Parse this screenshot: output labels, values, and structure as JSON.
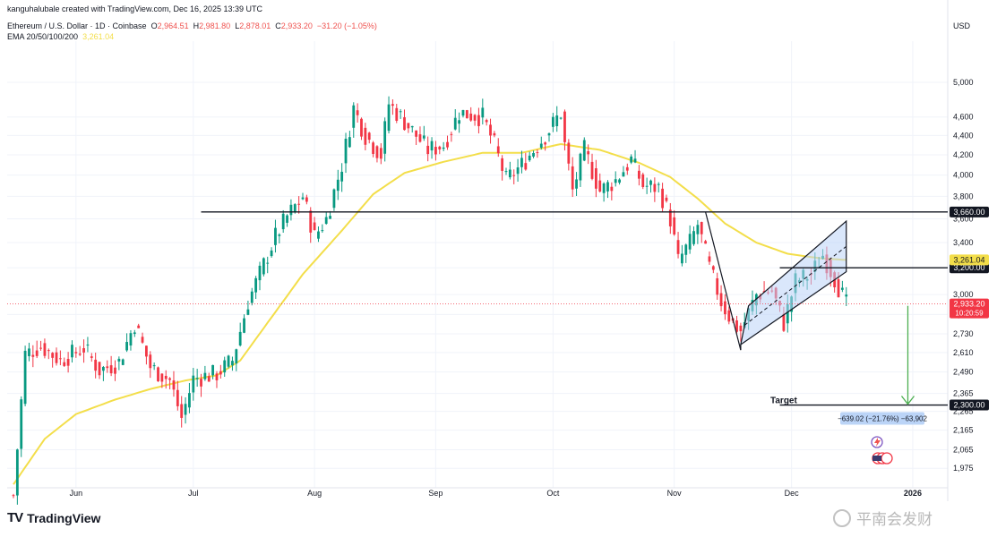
{
  "header": {
    "credit": "kanguhalubale created with TradingView.com, Dec 16, 2025 13:39 UTC",
    "symbol": "Ethereum / U.S. Dollar · 1D · Coinbase",
    "open_label": "O",
    "open": "2,964.51",
    "high_label": "H",
    "high": "2,981.80",
    "low_label": "L",
    "low": "2,878.01",
    "close_label": "C",
    "close": "2,933.20",
    "change": "−31.20 (−1.05%)",
    "ema_label": "EMA 20/50/100/200",
    "ema_value": "3,261.04"
  },
  "currency": "USD",
  "brand": "TradingView",
  "watermark": "平南会发财",
  "colors": {
    "up": "#089981",
    "down": "#f23645",
    "ema": "#f3de4a",
    "channel_fill": "#bbd4f7",
    "target_arrow": "#4caf50"
  },
  "icons": {
    "brand": "tradingview-logo-icon",
    "watermark": "wechat-channel-icon",
    "flag": "us-flag-icon",
    "event": "lightning-icon"
  },
  "chart_data": {
    "type": "candlestick",
    "y_scale": "log",
    "ylim": [
      1905,
      5450
    ],
    "y_ticks": [
      1975,
      2065,
      2165,
      2265,
      2365,
      2490,
      2610,
      2730,
      2860,
      3000,
      3200,
      3400,
      3600,
      3800,
      4000,
      4200,
      4400,
      4600,
      5000
    ],
    "y_tick_labels": [
      "1,975",
      "2,065",
      "2,165",
      "2,265",
      "2,365",
      "2,490",
      "2,610",
      "2,730",
      "2,860",
      "3,000",
      "3,200",
      "3,400",
      "3,600",
      "3,800",
      "4,000",
      "4,200",
      "4,400",
      "4,600",
      "5,000"
    ],
    "x_labels": [
      "Jun",
      "Jul",
      "Aug",
      "Sep",
      "Oct",
      "Nov",
      "Dec",
      "2026"
    ],
    "x_label_days": [
      16,
      46,
      77,
      108,
      138,
      169,
      199,
      230
    ],
    "date_range": [
      "2025-05-17",
      "2026-01-04"
    ],
    "anchors": [
      {
        "day": 0,
        "price": 1850
      },
      {
        "day": 3,
        "price": 2600
      },
      {
        "day": 7,
        "price": 2650
      },
      {
        "day": 12,
        "price": 2560
      },
      {
        "day": 18,
        "price": 2640
      },
      {
        "day": 22,
        "price": 2500
      },
      {
        "day": 27,
        "price": 2550
      },
      {
        "day": 31,
        "price": 2800
      },
      {
        "day": 35,
        "price": 2520
      },
      {
        "day": 40,
        "price": 2440
      },
      {
        "day": 43,
        "price": 2230
      },
      {
        "day": 46,
        "price": 2450
      },
      {
        "day": 52,
        "price": 2480
      },
      {
        "day": 56,
        "price": 2560
      },
      {
        "day": 60,
        "price": 2950
      },
      {
        "day": 67,
        "price": 3450
      },
      {
        "day": 70,
        "price": 3620
      },
      {
        "day": 74,
        "price": 3800
      },
      {
        "day": 77,
        "price": 3450
      },
      {
        "day": 80,
        "price": 3600
      },
      {
        "day": 84,
        "price": 4100
      },
      {
        "day": 87,
        "price": 4700
      },
      {
        "day": 90,
        "price": 4400
      },
      {
        "day": 94,
        "price": 4200
      },
      {
        "day": 96,
        "price": 4750
      },
      {
        "day": 99,
        "price": 4600
      },
      {
        "day": 102,
        "price": 4450
      },
      {
        "day": 106,
        "price": 4250
      },
      {
        "day": 110,
        "price": 4300
      },
      {
        "day": 114,
        "price": 4650
      },
      {
        "day": 120,
        "price": 4600
      },
      {
        "day": 123,
        "price": 4300
      },
      {
        "day": 126,
        "price": 3950
      },
      {
        "day": 130,
        "price": 4100
      },
      {
        "day": 136,
        "price": 4400
      },
      {
        "day": 140,
        "price": 4650
      },
      {
        "day": 141,
        "price": 4300
      },
      {
        "day": 143,
        "price": 3850
      },
      {
        "day": 146,
        "price": 4250
      },
      {
        "day": 150,
        "price": 3850
      },
      {
        "day": 154,
        "price": 3950
      },
      {
        "day": 158,
        "price": 4150
      },
      {
        "day": 161,
        "price": 3900
      },
      {
        "day": 165,
        "price": 3880
      },
      {
        "day": 168,
        "price": 3600
      },
      {
        "day": 170,
        "price": 3250
      },
      {
        "day": 173,
        "price": 3400
      },
      {
        "day": 175,
        "price": 3550
      },
      {
        "day": 178,
        "price": 3200
      },
      {
        "day": 181,
        "price": 2950
      },
      {
        "day": 184,
        "price": 2800
      },
      {
        "day": 186,
        "price": 2750
      },
      {
        "day": 190,
        "price": 3000
      },
      {
        "day": 194,
        "price": 3030
      },
      {
        "day": 197,
        "price": 2800
      },
      {
        "day": 200,
        "price": 3100
      },
      {
        "day": 204,
        "price": 3150
      },
      {
        "day": 207,
        "price": 3300
      },
      {
        "day": 210,
        "price": 3120
      },
      {
        "day": 213,
        "price": 2930
      }
    ],
    "ema_anchors": [
      {
        "day": 0,
        "price": 1900
      },
      {
        "day": 8,
        "price": 2120
      },
      {
        "day": 16,
        "price": 2250
      },
      {
        "day": 26,
        "price": 2330
      },
      {
        "day": 35,
        "price": 2390
      },
      {
        "day": 44,
        "price": 2440
      },
      {
        "day": 52,
        "price": 2470
      },
      {
        "day": 58,
        "price": 2560
      },
      {
        "day": 66,
        "price": 2840
      },
      {
        "day": 74,
        "price": 3150
      },
      {
        "day": 84,
        "price": 3500
      },
      {
        "day": 92,
        "price": 3820
      },
      {
        "day": 100,
        "price": 4020
      },
      {
        "day": 110,
        "price": 4130
      },
      {
        "day": 120,
        "price": 4220
      },
      {
        "day": 130,
        "price": 4220
      },
      {
        "day": 140,
        "price": 4310
      },
      {
        "day": 150,
        "price": 4250
      },
      {
        "day": 160,
        "price": 4120
      },
      {
        "day": 168,
        "price": 3980
      },
      {
        "day": 175,
        "price": 3780
      },
      {
        "day": 182,
        "price": 3560
      },
      {
        "day": 190,
        "price": 3400
      },
      {
        "day": 198,
        "price": 3310
      },
      {
        "day": 206,
        "price": 3275
      },
      {
        "day": 213,
        "price": 3261
      }
    ],
    "horizontal_levels": [
      {
        "price": 3660,
        "label": "3,660.00",
        "from_day": 48,
        "to_day": 243
      },
      {
        "price": 3200,
        "label": "3,200.00",
        "from_day": 196,
        "to_day": 243
      },
      {
        "price": 2300,
        "label": "2,300.00",
        "from_day": 196,
        "to_day": 243
      }
    ],
    "ema_tag": "3,261.04",
    "price_tag": "2,933.20",
    "countdown": "10:20:59",
    "target_label": "Target",
    "target_measure": "−639.02 (−21.76%) −63,902",
    "channel": {
      "lower": [
        {
          "day": 186,
          "price": 2660
        },
        {
          "day": 213,
          "price": 3170
        }
      ],
      "upper": [
        {
          "day": 188,
          "price": 2920
        },
        {
          "day": 213,
          "price": 3580
        }
      ]
    },
    "drop_line": [
      {
        "day": 177,
        "price": 3660
      },
      {
        "day": 186,
        "price": 2625
      }
    ],
    "projection_arrow": {
      "day": 215,
      "from": 2920,
      "to": 2300
    }
  }
}
